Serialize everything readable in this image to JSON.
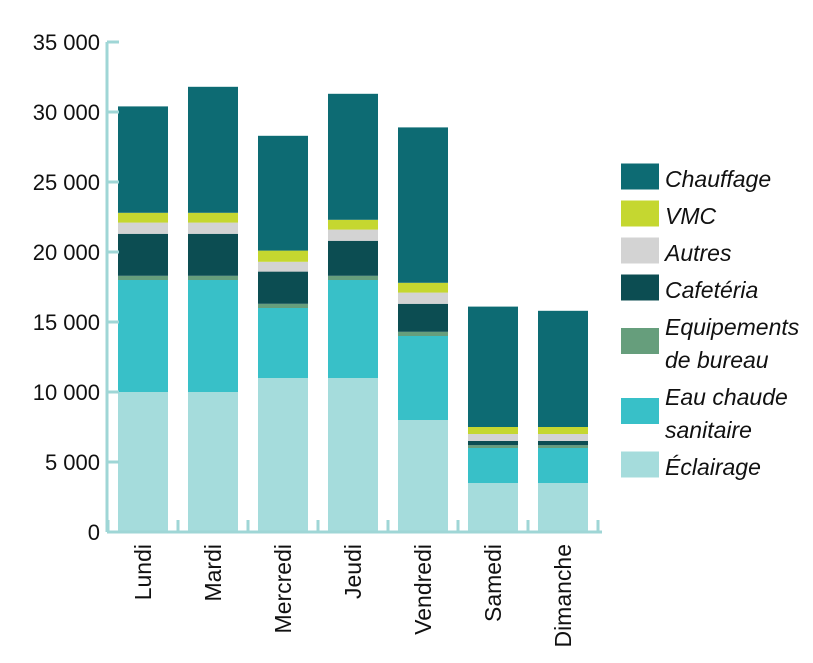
{
  "chart_data": {
    "type": "bar",
    "stacked": true,
    "categories": [
      "Lundi",
      "Mardi",
      "Mercredi",
      "Jeudi",
      "Vendredi",
      "Samedi",
      "Dimanche"
    ],
    "ylim": [
      0,
      35000
    ],
    "yticks": [
      {
        "value": 0,
        "label": "0"
      },
      {
        "value": 5000,
        "label": "5 000"
      },
      {
        "value": 10000,
        "label": "10 000"
      },
      {
        "value": 15000,
        "label": "15 000"
      },
      {
        "value": 20000,
        "label": "20 000"
      },
      {
        "value": 25000,
        "label": "25 000"
      },
      {
        "value": 30000,
        "label": "30 000"
      },
      {
        "value": 35000,
        "label": "35 000"
      }
    ],
    "grid": false,
    "legend_position": "right",
    "axis_color": "#9fd6d6",
    "series": [
      {
        "name": "Éclairage",
        "color": "#a5dcdc",
        "values": [
          10000,
          10000,
          11000,
          11000,
          8000,
          3500,
          3500
        ]
      },
      {
        "name": "Eau chaude sanitaire",
        "color": "#38c0c8",
        "values": [
          8000,
          8000,
          5000,
          7000,
          6000,
          2500,
          2500
        ]
      },
      {
        "name": "Equipements de bureau",
        "color": "#669e7c",
        "values": [
          300,
          300,
          300,
          300,
          300,
          200,
          200
        ]
      },
      {
        "name": "Cafetéria",
        "color": "#0c4d52",
        "values": [
          3000,
          3000,
          2300,
          2500,
          2000,
          300,
          300
        ]
      },
      {
        "name": "Autres",
        "color": "#d3d3d3",
        "values": [
          800,
          800,
          700,
          800,
          800,
          500,
          500
        ]
      },
      {
        "name": "VMC",
        "color": "#c5d730",
        "values": [
          700,
          700,
          800,
          700,
          700,
          500,
          500
        ]
      },
      {
        "name": "Chauffage",
        "color": "#0d6b73",
        "values": [
          7600,
          9000,
          8200,
          9000,
          11100,
          8600,
          8300
        ]
      }
    ],
    "legend": [
      {
        "series": "Chauffage",
        "lines": [
          "Chauffage"
        ]
      },
      {
        "series": "VMC",
        "lines": [
          "VMC"
        ]
      },
      {
        "series": "Autres",
        "lines": [
          "Autres"
        ]
      },
      {
        "series": "Cafetéria",
        "lines": [
          "Cafetéria"
        ]
      },
      {
        "series": "Equipements de bureau",
        "lines": [
          "Equipements",
          "de bureau"
        ]
      },
      {
        "series": "Eau chaude sanitaire",
        "lines": [
          "Eau chaude",
          "sanitaire"
        ]
      },
      {
        "series": "Éclairage",
        "lines": [
          "Éclairage"
        ]
      }
    ]
  }
}
